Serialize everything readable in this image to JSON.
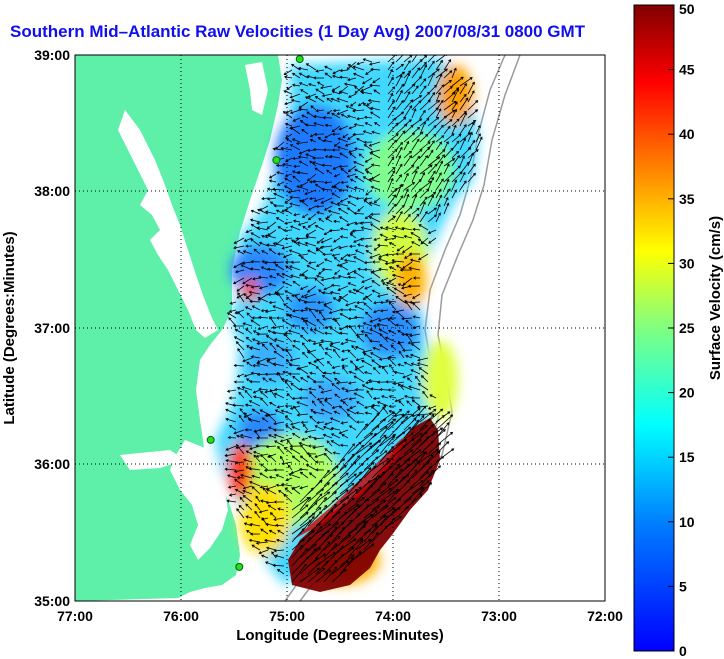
{
  "title": "Southern Mid–Atlantic Raw Velocities (1 Day Avg) 2007/08/31 0800 GMT",
  "x_axis": {
    "label": "Longitude (Degrees:Minutes)",
    "ticks": [
      "77:00",
      "76:00",
      "75:00",
      "74:00",
      "73:00",
      "72:00"
    ],
    "range_deg": [
      -77,
      -72
    ]
  },
  "y_axis": {
    "label": "Latitude (Degrees:Minutes)",
    "ticks": [
      "35:00",
      "36:00",
      "37:00",
      "38:00",
      "39:00"
    ],
    "range_deg": [
      35,
      39
    ]
  },
  "colorbar": {
    "label": "Surface Velocity (cm/s)",
    "ticks": [
      "0",
      "5",
      "10",
      "15",
      "20",
      "25",
      "30",
      "35",
      "40",
      "45",
      "50"
    ],
    "range": [
      0,
      50
    ]
  },
  "colors": {
    "land": "#5ef0a8",
    "water_nodata": "#ffffff",
    "title": "#1010ee",
    "arrows": "#000000"
  },
  "stations": [
    {
      "lon": -74.88,
      "lat": 38.97
    },
    {
      "lon": -75.1,
      "lat": 38.23
    },
    {
      "lon": -75.72,
      "lat": 36.18
    },
    {
      "lon": -75.45,
      "lat": 35.25
    }
  ]
}
